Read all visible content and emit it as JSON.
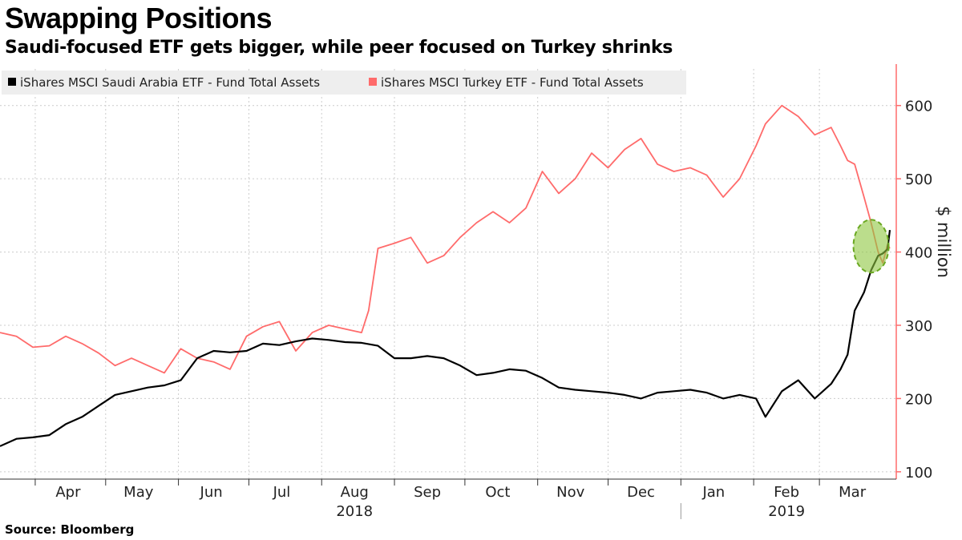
{
  "header": {
    "title": "Swapping Positions",
    "subtitle": "Saudi-focused ETF gets bigger, while peer focused on Turkey shrinks"
  },
  "footer": {
    "source": "Source: Bloomberg"
  },
  "colors": {
    "saudi": "#000000",
    "turkey": "#ff6b6b",
    "highlight": "#8dc63f",
    "grid": "#cccccc",
    "legend_bg": "#eeeeee"
  },
  "chart_data": {
    "type": "line",
    "ylabel": "$ million",
    "ylim": [
      90,
      650
    ],
    "yticks": [
      100,
      200,
      300,
      400,
      500,
      600
    ],
    "grid": true,
    "legend_position": "top-left",
    "x_range": [
      "2018-03-17",
      "2019-03-31"
    ],
    "month_labels": [
      {
        "label": "Apr",
        "date": "2018-04-15"
      },
      {
        "label": "May",
        "date": "2018-05-15"
      },
      {
        "label": "Jun",
        "date": "2018-06-15"
      },
      {
        "label": "Jul",
        "date": "2018-07-15"
      },
      {
        "label": "Aug",
        "date": "2018-08-15"
      },
      {
        "label": "Sep",
        "date": "2018-09-15"
      },
      {
        "label": "Oct",
        "date": "2018-10-15"
      },
      {
        "label": "Nov",
        "date": "2018-11-15"
      },
      {
        "label": "Dec",
        "date": "2018-12-15"
      },
      {
        "label": "Jan",
        "date": "2019-01-15"
      },
      {
        "label": "Feb",
        "date": "2019-02-15"
      },
      {
        "label": "Mar",
        "date": "2019-03-15"
      }
    ],
    "year_labels": [
      {
        "label": "2018",
        "date": "2018-08-15"
      },
      {
        "label": "2019",
        "date": "2019-02-15"
      }
    ],
    "year_divider_date": "2019-01-01",
    "highlight": {
      "date": "2019-03-23",
      "value": 408
    },
    "series": [
      {
        "name": "iShares MSCI Saudi Arabia ETF - Fund Total Assets",
        "color": "#000000",
        "points": [
          [
            "2018-03-17",
            135
          ],
          [
            "2018-03-24",
            145
          ],
          [
            "2018-03-31",
            147
          ],
          [
            "2018-04-07",
            150
          ],
          [
            "2018-04-14",
            165
          ],
          [
            "2018-04-21",
            175
          ],
          [
            "2018-04-28",
            190
          ],
          [
            "2018-05-05",
            205
          ],
          [
            "2018-05-12",
            210
          ],
          [
            "2018-05-19",
            215
          ],
          [
            "2018-05-26",
            218
          ],
          [
            "2018-06-02",
            225
          ],
          [
            "2018-06-09",
            255
          ],
          [
            "2018-06-16",
            265
          ],
          [
            "2018-06-23",
            263
          ],
          [
            "2018-06-30",
            265
          ],
          [
            "2018-07-07",
            275
          ],
          [
            "2018-07-14",
            273
          ],
          [
            "2018-07-21",
            278
          ],
          [
            "2018-07-28",
            282
          ],
          [
            "2018-08-04",
            280
          ],
          [
            "2018-08-11",
            277
          ],
          [
            "2018-08-18",
            276
          ],
          [
            "2018-08-25",
            272
          ],
          [
            "2018-09-01",
            255
          ],
          [
            "2018-09-08",
            255
          ],
          [
            "2018-09-15",
            258
          ],
          [
            "2018-09-22",
            255
          ],
          [
            "2018-09-29",
            245
          ],
          [
            "2018-10-06",
            232
          ],
          [
            "2018-10-13",
            235
          ],
          [
            "2018-10-20",
            240
          ],
          [
            "2018-10-27",
            238
          ],
          [
            "2018-11-03",
            228
          ],
          [
            "2018-11-10",
            215
          ],
          [
            "2018-11-17",
            212
          ],
          [
            "2018-11-24",
            210
          ],
          [
            "2018-12-01",
            208
          ],
          [
            "2018-12-08",
            205
          ],
          [
            "2018-12-15",
            200
          ],
          [
            "2018-12-22",
            208
          ],
          [
            "2018-12-29",
            210
          ],
          [
            "2019-01-05",
            212
          ],
          [
            "2019-01-12",
            208
          ],
          [
            "2019-01-19",
            200
          ],
          [
            "2019-01-26",
            205
          ],
          [
            "2019-02-02",
            200
          ],
          [
            "2019-02-06",
            175
          ],
          [
            "2019-02-13",
            210
          ],
          [
            "2019-02-20",
            225
          ],
          [
            "2019-02-27",
            200
          ],
          [
            "2019-03-06",
            220
          ],
          [
            "2019-03-10",
            240
          ],
          [
            "2019-03-13",
            260
          ],
          [
            "2019-03-16",
            320
          ],
          [
            "2019-03-20",
            345
          ],
          [
            "2019-03-23",
            375
          ],
          [
            "2019-03-26",
            395
          ],
          [
            "2019-03-28",
            398
          ],
          [
            "2019-03-30",
            404
          ],
          [
            "2019-03-31",
            430
          ]
        ]
      },
      {
        "name": "iShares MSCI Turkey ETF - Fund Total Assets",
        "color": "#ff6b6b",
        "points": [
          [
            "2018-03-17",
            290
          ],
          [
            "2018-03-24",
            285
          ],
          [
            "2018-03-31",
            270
          ],
          [
            "2018-04-07",
            272
          ],
          [
            "2018-04-14",
            285
          ],
          [
            "2018-04-21",
            275
          ],
          [
            "2018-04-28",
            262
          ],
          [
            "2018-05-05",
            245
          ],
          [
            "2018-05-12",
            255
          ],
          [
            "2018-05-19",
            245
          ],
          [
            "2018-05-26",
            235
          ],
          [
            "2018-06-02",
            268
          ],
          [
            "2018-06-09",
            255
          ],
          [
            "2018-06-16",
            250
          ],
          [
            "2018-06-23",
            240
          ],
          [
            "2018-06-30",
            285
          ],
          [
            "2018-07-07",
            298
          ],
          [
            "2018-07-14",
            305
          ],
          [
            "2018-07-21",
            265
          ],
          [
            "2018-07-28",
            290
          ],
          [
            "2018-08-04",
            300
          ],
          [
            "2018-08-11",
            295
          ],
          [
            "2018-08-18",
            290
          ],
          [
            "2018-08-21",
            320
          ],
          [
            "2018-08-25",
            405
          ],
          [
            "2018-09-01",
            412
          ],
          [
            "2018-09-08",
            420
          ],
          [
            "2018-09-15",
            385
          ],
          [
            "2018-09-22",
            395
          ],
          [
            "2018-09-29",
            420
          ],
          [
            "2018-10-06",
            440
          ],
          [
            "2018-10-13",
            455
          ],
          [
            "2018-10-20",
            440
          ],
          [
            "2018-10-27",
            460
          ],
          [
            "2018-11-03",
            510
          ],
          [
            "2018-11-10",
            480
          ],
          [
            "2018-11-17",
            500
          ],
          [
            "2018-11-24",
            535
          ],
          [
            "2018-12-01",
            515
          ],
          [
            "2018-12-08",
            540
          ],
          [
            "2018-12-15",
            555
          ],
          [
            "2018-12-22",
            520
          ],
          [
            "2018-12-29",
            510
          ],
          [
            "2019-01-05",
            515
          ],
          [
            "2019-01-12",
            505
          ],
          [
            "2019-01-19",
            475
          ],
          [
            "2019-01-26",
            500
          ],
          [
            "2019-02-02",
            545
          ],
          [
            "2019-02-06",
            575
          ],
          [
            "2019-02-13",
            600
          ],
          [
            "2019-02-20",
            585
          ],
          [
            "2019-02-27",
            560
          ],
          [
            "2019-03-06",
            570
          ],
          [
            "2019-03-10",
            545
          ],
          [
            "2019-03-13",
            525
          ],
          [
            "2019-03-16",
            520
          ],
          [
            "2019-03-20",
            475
          ],
          [
            "2019-03-23",
            440
          ],
          [
            "2019-03-26",
            400
          ],
          [
            "2019-03-28",
            385
          ],
          [
            "2019-03-30",
            410
          ],
          [
            "2019-03-31",
            405
          ]
        ]
      }
    ]
  }
}
